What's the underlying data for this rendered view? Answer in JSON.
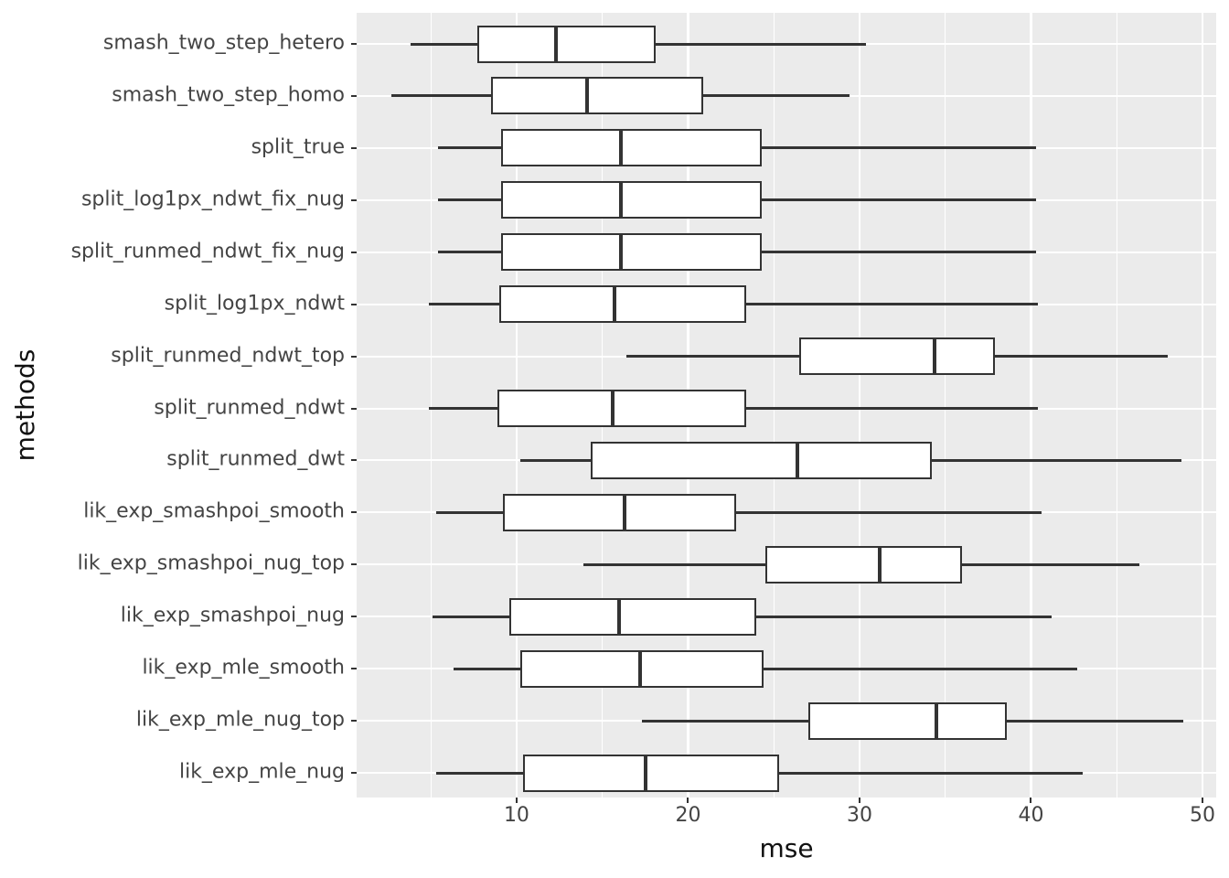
{
  "figure": {
    "background": "#FFFFFF",
    "panel_background": "#EBEBEB",
    "gridline_color": "#FFFFFF",
    "box_stroke": "#333333",
    "box_fill": "#FFFFFF",
    "tick_mark_color": "#333333",
    "tick_label_color": "#444444",
    "axis_title_color": "#111111"
  },
  "chart_data": {
    "type": "boxplot",
    "orientation": "horizontal",
    "title": "",
    "xlabel": "mse",
    "ylabel": "methods",
    "xlim": [
      0.67,
      50.8
    ],
    "x_major_ticks": [
      10,
      20,
      30,
      40,
      50
    ],
    "x_minor_ticks": [
      5,
      15,
      25,
      35,
      45
    ],
    "grid": true,
    "legend": "none",
    "categories": [
      "smash_two_step_hetero",
      "smash_two_step_homo",
      "split_true",
      "split_log1px_ndwt_fix_nug",
      "split_runmed_ndwt_fix_nug",
      "split_log1px_ndwt",
      "split_runmed_ndwt_top",
      "split_runmed_ndwt",
      "split_runmed_dwt",
      "lik_exp_smashpoi_smooth",
      "lik_exp_smashpoi_nug_top",
      "lik_exp_smashpoi_nug",
      "lik_exp_mle_smooth",
      "lik_exp_mle_nug_top",
      "lik_exp_mle_nug"
    ],
    "boxes": [
      {
        "name": "smash_two_step_hetero",
        "whisker_min": 3.8,
        "q1": 7.7,
        "median": 12.3,
        "q3": 18.1,
        "whisker_max": 30.4
      },
      {
        "name": "smash_two_step_homo",
        "whisker_min": 2.7,
        "q1": 8.5,
        "median": 14.1,
        "q3": 20.9,
        "whisker_max": 29.4
      },
      {
        "name": "split_true",
        "whisker_min": 5.4,
        "q1": 9.1,
        "median": 16.1,
        "q3": 24.3,
        "whisker_max": 40.3
      },
      {
        "name": "split_log1px_ndwt_fix_nug",
        "whisker_min": 5.4,
        "q1": 9.1,
        "median": 16.1,
        "q3": 24.3,
        "whisker_max": 40.3
      },
      {
        "name": "split_runmed_ndwt_fix_nug",
        "whisker_min": 5.4,
        "q1": 9.1,
        "median": 16.1,
        "q3": 24.3,
        "whisker_max": 40.3
      },
      {
        "name": "split_log1px_ndwt",
        "whisker_min": 4.9,
        "q1": 9.0,
        "median": 15.7,
        "q3": 23.4,
        "whisker_max": 40.4
      },
      {
        "name": "split_runmed_ndwt_top",
        "whisker_min": 16.4,
        "q1": 26.5,
        "median": 34.4,
        "q3": 37.9,
        "whisker_max": 48.0
      },
      {
        "name": "split_runmed_ndwt",
        "whisker_min": 4.9,
        "q1": 8.9,
        "median": 15.6,
        "q3": 23.4,
        "whisker_max": 40.4
      },
      {
        "name": "split_runmed_dwt",
        "whisker_min": 10.2,
        "q1": 14.3,
        "median": 26.4,
        "q3": 34.2,
        "whisker_max": 48.8
      },
      {
        "name": "lik_exp_smashpoi_smooth",
        "whisker_min": 5.3,
        "q1": 9.2,
        "median": 16.3,
        "q3": 22.8,
        "whisker_max": 40.6
      },
      {
        "name": "lik_exp_smashpoi_nug_top",
        "whisker_min": 13.9,
        "q1": 24.5,
        "median": 31.2,
        "q3": 36.0,
        "whisker_max": 46.3
      },
      {
        "name": "lik_exp_smashpoi_nug",
        "whisker_min": 5.1,
        "q1": 9.6,
        "median": 16.0,
        "q3": 24.0,
        "whisker_max": 41.2
      },
      {
        "name": "lik_exp_mle_smooth",
        "whisker_min": 6.3,
        "q1": 10.2,
        "median": 17.2,
        "q3": 24.4,
        "whisker_max": 42.7
      },
      {
        "name": "lik_exp_mle_nug_top",
        "whisker_min": 17.3,
        "q1": 27.0,
        "median": 34.5,
        "q3": 38.6,
        "whisker_max": 48.9
      },
      {
        "name": "lik_exp_mle_nug",
        "whisker_min": 5.3,
        "q1": 10.4,
        "median": 17.5,
        "q3": 25.3,
        "whisker_max": 43.0
      }
    ]
  }
}
